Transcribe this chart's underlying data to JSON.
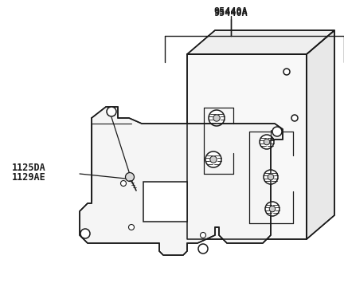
{
  "background_color": "#ffffff",
  "line_color": "#1a1a1a",
  "label_95440A": "95440A",
  "label_1125DA": "1125DA",
  "label_1129AE": "1129AE",
  "label_fontsize": 8.5,
  "fig_width": 4.32,
  "fig_height": 3.65,
  "dpi": 100
}
